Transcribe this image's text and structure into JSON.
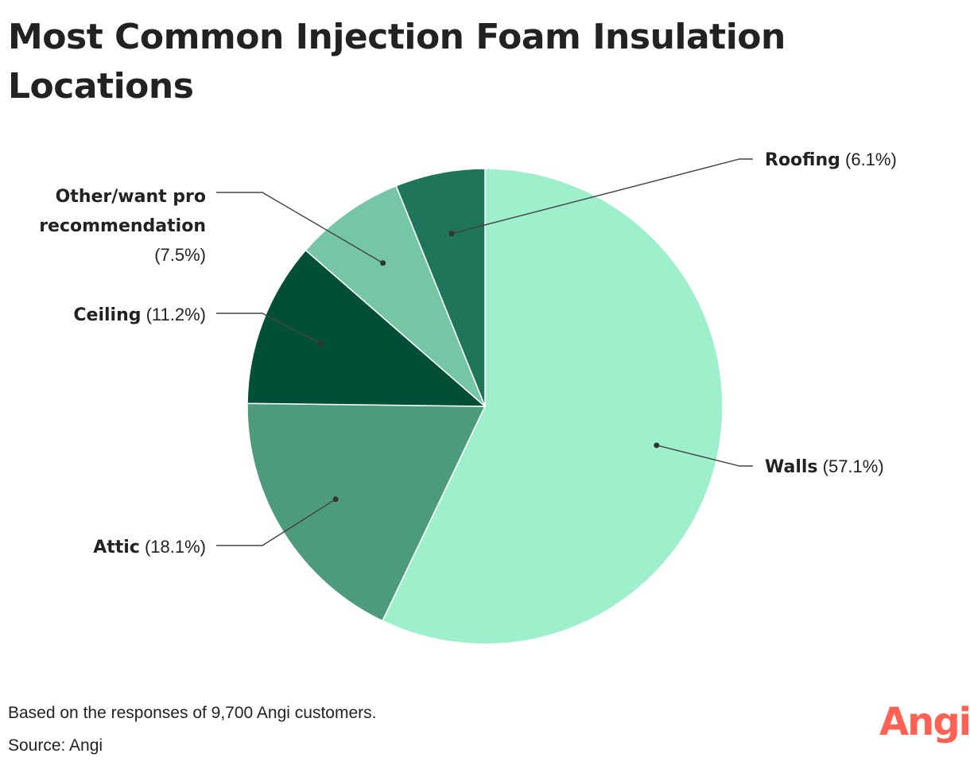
{
  "title": "Most Common Injection Foam Insulation Locations",
  "footnote": "Based on the responses of 9,700 Angi customers.",
  "source": "Source: Angi",
  "logo": {
    "text": "Angi",
    "color": "#ff6153"
  },
  "chart_data": {
    "type": "pie",
    "title": "Most Common Injection Foam Insulation Locations",
    "slices": [
      {
        "label": "Walls",
        "value_text": "(57.1%)",
        "value": 57.1,
        "color": "#9ef0cd"
      },
      {
        "label": "Attic",
        "value_text": "(18.1%)",
        "value": 18.1,
        "color": "#4c9b7d"
      },
      {
        "label": "Ceiling",
        "value_text": "(11.2%)",
        "value": 11.2,
        "color": "#004f36"
      },
      {
        "label": "Other/want pro recommendation",
        "label_lines": [
          "Other/want pro",
          "recommendation"
        ],
        "value_text": "(7.5%)",
        "value": 7.5,
        "color": "#75c6a5"
      },
      {
        "label": "Roofing",
        "value_text": "(6.1%)",
        "value": 6.1,
        "color": "#1f7559"
      }
    ]
  }
}
